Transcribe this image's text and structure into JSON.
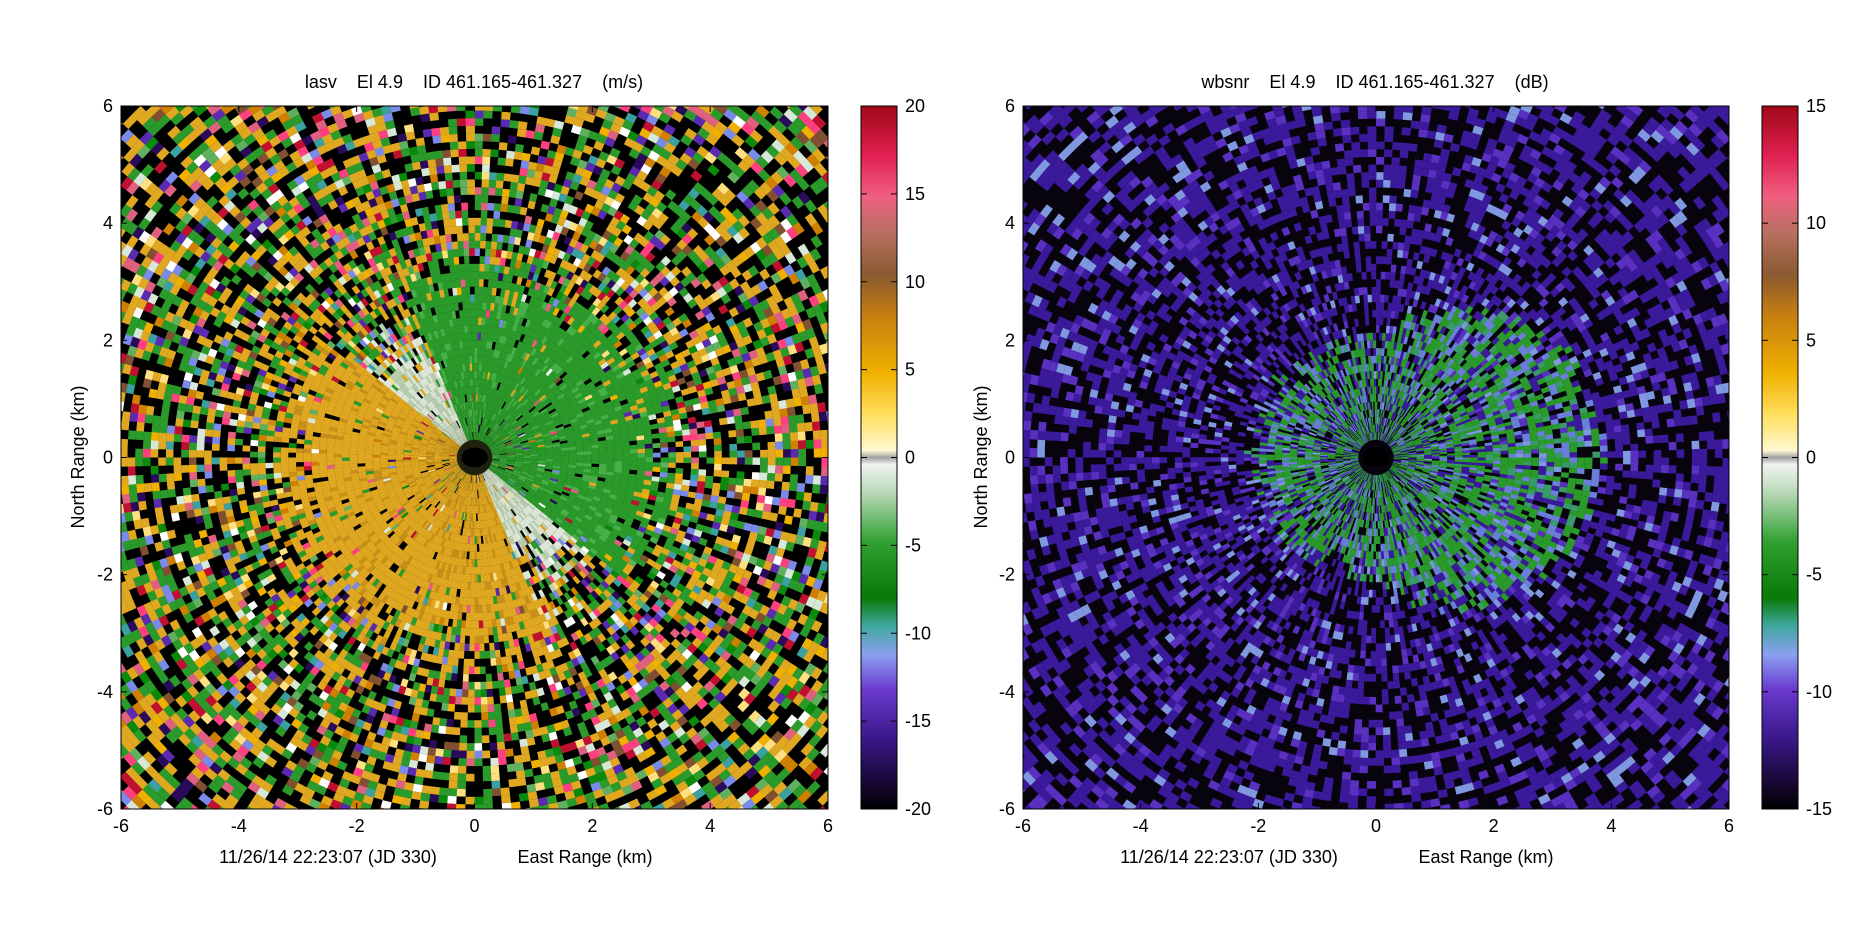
{
  "chart_data": [
    {
      "type": "heatmap",
      "plot_kind": "radar PPI (polar sweep)",
      "title": "lasv    El 4.9    ID 461.165-461.327    (m/s)",
      "xlabel": "East Range (km)",
      "ylabel": "North Range (km)",
      "timestamp": "11/26/14 22:23:07 (JD 330)",
      "xlim": [
        -6,
        6
      ],
      "ylim": [
        -6,
        6
      ],
      "xticks": [
        "-6",
        "-4",
        "-2",
        "0",
        "2",
        "4",
        "6"
      ],
      "yticks": [
        "6",
        "4",
        "2",
        "0",
        "-2",
        "-4",
        "-6"
      ],
      "colorbar": {
        "min": -20,
        "max": 20,
        "ticks": [
          "20",
          "15",
          "10",
          "5",
          "0",
          "-5",
          "-10",
          "-15",
          "-20"
        ]
      },
      "pattern": {
        "approach_color": "#e0a820",
        "recede_color": "#2a9a2a",
        "noise_radius_km": 2.5,
        "inner_hole_radius_km": 0.3
      }
    },
    {
      "type": "heatmap",
      "plot_kind": "radar PPI (polar sweep)",
      "title": "wbsnr    El 4.9    ID 461.165-461.327    (dB)",
      "xlabel": "East Range (km)",
      "ylabel": "North Range (km)",
      "timestamp": "11/26/14 22:23:07 (JD 330)",
      "xlim": [
        -6,
        6
      ],
      "ylim": [
        -6,
        6
      ],
      "xticks": [
        "-6",
        "-4",
        "-2",
        "0",
        "2",
        "4",
        "6"
      ],
      "yticks": [
        "6",
        "4",
        "2",
        "0",
        "-2",
        "-4",
        "-6"
      ],
      "colorbar": {
        "min": -15,
        "max": 15,
        "ticks": [
          "15",
          "10",
          "5",
          "0",
          "-5",
          "-10",
          "-15"
        ]
      },
      "pattern": {
        "background_color": "#08040e",
        "noise_color": "#3a1a9a",
        "core_color": "#2a9a2a",
        "core_radius_km": 3.2,
        "inner_hole_radius_km": 0.3
      }
    }
  ],
  "colorscale": [
    "#000000",
    "#2a0a5a",
    "#5a2ab0",
    "#7a8ae8",
    "#3aa0a0",
    "#0a8a0a",
    "#60b060",
    "#d8e8d8",
    "#ffffff",
    "#ffe080",
    "#f0b000",
    "#d08000",
    "#805030",
    "#e06080",
    "#ff4080",
    "#c01030"
  ]
}
